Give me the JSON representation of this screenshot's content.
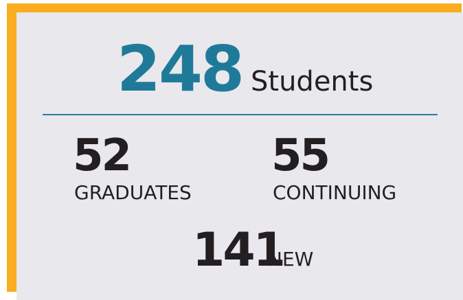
{
  "total": {
    "value": 248,
    "label": "Students"
  },
  "breakdown": [
    {
      "value": 52,
      "label": "GRADUATES"
    },
    {
      "value": 55,
      "label": "CONTINUING"
    },
    {
      "value": 141,
      "label": "NEW"
    }
  ]
}
